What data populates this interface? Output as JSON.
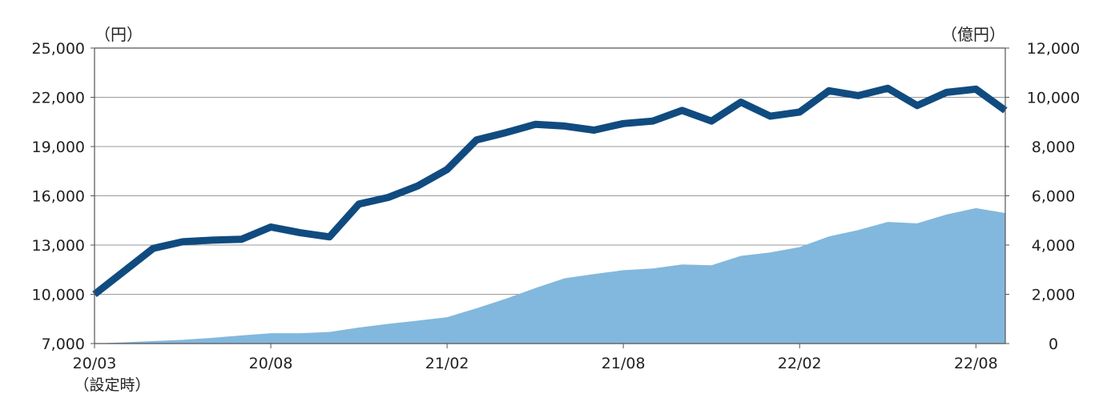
{
  "chart_data": {
    "type": "line",
    "title": "",
    "left_unit": "（円）",
    "right_unit": "（億円）",
    "x_ticks": [
      {
        "label": "20/03",
        "sub": "（設定時）",
        "index": 0
      },
      {
        "label": "20/08",
        "sub": "",
        "index": 6
      },
      {
        "label": "21/02",
        "sub": "",
        "index": 12
      },
      {
        "label": "21/08",
        "sub": "",
        "index": 18
      },
      {
        "label": "22/02",
        "sub": "",
        "index": 24
      },
      {
        "label": "22/08",
        "sub": "",
        "index": 30
      }
    ],
    "y_left": {
      "min": 7000,
      "max": 25000,
      "ticks": [
        "7,000",
        "10,000",
        "13,000",
        "16,000",
        "19,000",
        "22,000",
        "25,000"
      ]
    },
    "y_right": {
      "min": 0,
      "max": 12000,
      "ticks": [
        "0",
        "2,000",
        "4,000",
        "6,000",
        "8,000",
        "10,000",
        "12,000"
      ]
    },
    "grid": true,
    "series": [
      {
        "type": "area",
        "axis": "right",
        "color": "#82b8dd",
        "values": [
          0,
          50,
          100,
          150,
          230,
          330,
          420,
          420,
          470,
          650,
          800,
          930,
          1070,
          1430,
          1820,
          2250,
          2650,
          2820,
          2980,
          3050,
          3210,
          3180,
          3560,
          3700,
          3920,
          4350,
          4610,
          4940,
          4880,
          5240,
          5500,
          5300
        ]
      },
      {
        "type": "line",
        "axis": "left",
        "color": "#104b80",
        "values": [
          10000,
          11400,
          12800,
          13200,
          13300,
          13350,
          14100,
          13750,
          13500,
          15500,
          15900,
          16600,
          17600,
          19400,
          19850,
          20350,
          20250,
          20000,
          20400,
          20550,
          21200,
          20550,
          21700,
          20850,
          21100,
          22400,
          22100,
          22550,
          21500,
          22300,
          22500,
          21200
        ]
      }
    ]
  }
}
